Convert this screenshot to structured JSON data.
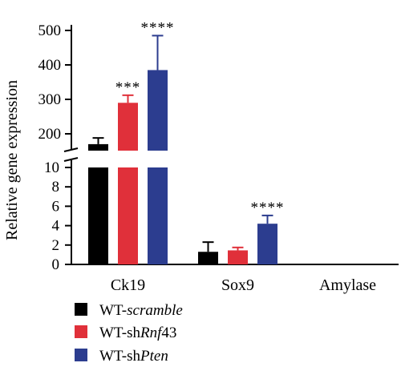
{
  "chart_data": {
    "type": "bar",
    "ylabel": "Relative gene expression",
    "categories": [
      "Ck19",
      "Sox9",
      "Amylase"
    ],
    "y_axis_broken": true,
    "ylim_lower": [
      0,
      10
    ],
    "ylim_upper": [
      100,
      500
    ],
    "yticks_lower": [
      "0",
      "2",
      "4",
      "6",
      "8",
      "10"
    ],
    "yticks_upper": [
      "200",
      "300",
      "400",
      "500"
    ],
    "series": [
      {
        "name": "WT-scramble",
        "name_parts": [
          "WT-",
          "scramble"
        ],
        "color": "#000000",
        "values": [
          170,
          1.3,
          0
        ],
        "errors": [
          18,
          1.0,
          0
        ],
        "significance": [
          "",
          "",
          ""
        ]
      },
      {
        "name": "WT-shRnf43",
        "name_parts": [
          "WT-sh",
          "Rnf",
          "43"
        ],
        "color": "#e0303a",
        "values": [
          290,
          1.45,
          0
        ],
        "errors": [
          22,
          0.3,
          0
        ],
        "significance": [
          "***",
          "",
          ""
        ]
      },
      {
        "name": "WT-shPten",
        "name_parts": [
          "WT-sh",
          "Pten"
        ],
        "color": "#2c3d8f",
        "values": [
          385,
          4.2,
          0
        ],
        "errors": [
          100,
          0.85,
          0
        ],
        "significance": [
          "****",
          "****",
          ""
        ]
      }
    ],
    "legend_position": "bottom-left"
  }
}
